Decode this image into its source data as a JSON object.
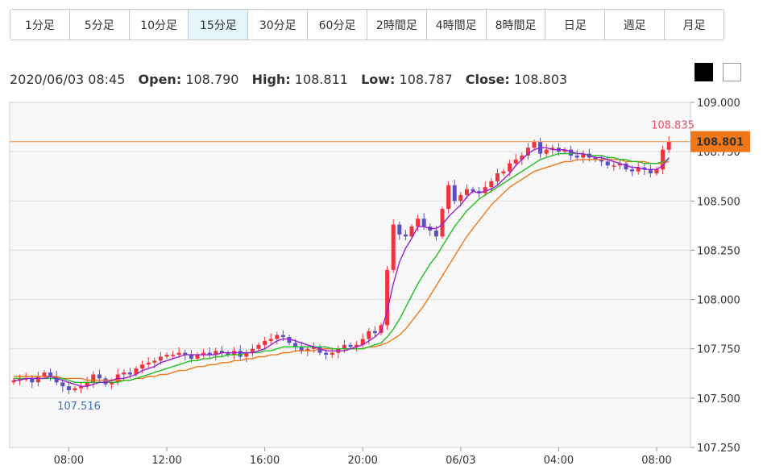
{
  "timeframes": [
    "1分足",
    "5分足",
    "10分足",
    "15分足",
    "30分足",
    "60分足",
    "2時間足",
    "4時間足",
    "8時間足",
    "日足",
    "週足",
    "月足"
  ],
  "active_timeframe": "15分足",
  "ohlc": {
    "datetime": "2020/06/03 08:45",
    "open_label": "Open:",
    "open": "108.790",
    "high_label": "High:",
    "high": "108.811",
    "low_label": "Low:",
    "low": "108.787",
    "close_label": "Close:",
    "close": "108.803"
  },
  "colors": {
    "up": "#f0323c",
    "down": "#5a50c8",
    "ma_short": "#9b1fd6",
    "ma_mid": "#1fbf1f",
    "ma_long": "#f07818",
    "price_line": "#f0a060",
    "price_tag": "#f07818",
    "high_label": "#e8506a",
    "low_label": "#3a70b8",
    "plot_bg": "#f8f8f8",
    "grid": "#dcdcdc"
  },
  "chart_data": {
    "type": "candlestick",
    "ylim": [
      107.25,
      109.0
    ],
    "yticks": [
      "109.000",
      "108.750",
      "108.500",
      "108.250",
      "108.000",
      "107.750",
      "107.500",
      "107.250"
    ],
    "xticks": [
      {
        "label": "08:00",
        "index": 9
      },
      {
        "label": "12:00",
        "index": 25
      },
      {
        "label": "16:00",
        "index": 41
      },
      {
        "label": "20:00",
        "index": 57
      },
      {
        "label": "06/03",
        "index": 73
      },
      {
        "label": "04:00",
        "index": 89
      },
      {
        "label": "08:00",
        "index": 105
      }
    ],
    "current_price": "108.801",
    "high_annotation": "108.835",
    "low_annotation": "107.516",
    "closes": [
      107.59,
      107.6,
      107.6,
      107.58,
      107.61,
      107.63,
      107.61,
      107.58,
      107.56,
      107.54,
      107.55,
      107.56,
      107.58,
      107.62,
      107.6,
      107.57,
      107.58,
      107.62,
      107.63,
      107.62,
      107.65,
      107.67,
      107.68,
      107.69,
      107.71,
      107.72,
      107.72,
      107.73,
      107.72,
      107.7,
      107.72,
      107.73,
      107.72,
      107.74,
      107.73,
      107.72,
      107.74,
      107.71,
      107.73,
      107.75,
      107.77,
      107.79,
      107.8,
      107.82,
      107.81,
      107.78,
      107.76,
      107.74,
      107.75,
      107.76,
      107.73,
      107.72,
      107.73,
      107.75,
      107.77,
      107.76,
      107.77,
      107.8,
      107.84,
      107.83,
      107.87,
      108.15,
      108.38,
      108.33,
      108.32,
      108.37,
      108.41,
      108.37,
      108.35,
      108.32,
      108.46,
      108.58,
      108.5,
      108.53,
      108.56,
      108.55,
      108.54,
      108.57,
      108.6,
      108.64,
      108.65,
      108.69,
      108.71,
      108.73,
      108.77,
      108.8,
      108.74,
      108.76,
      108.77,
      108.75,
      108.76,
      108.73,
      108.72,
      108.74,
      108.72,
      108.71,
      108.7,
      108.68,
      108.68,
      108.69,
      108.66,
      108.65,
      108.67,
      108.66,
      108.64,
      108.66,
      108.76,
      108.8
    ],
    "ma_short": [
      107.59,
      107.59,
      107.6,
      107.6,
      107.6,
      107.6,
      107.61,
      107.6,
      107.59,
      107.58,
      107.57,
      107.56,
      107.56,
      107.57,
      107.58,
      107.58,
      107.59,
      107.6,
      107.6,
      107.61,
      107.62,
      107.64,
      107.65,
      107.66,
      107.68,
      107.69,
      107.7,
      107.71,
      107.72,
      107.72,
      107.72,
      107.72,
      107.72,
      107.72,
      107.73,
      107.73,
      107.73,
      107.73,
      107.73,
      107.73,
      107.74,
      107.75,
      107.77,
      107.79,
      107.8,
      107.8,
      107.79,
      107.78,
      107.77,
      107.76,
      107.75,
      107.74,
      107.74,
      107.74,
      107.74,
      107.75,
      107.76,
      107.77,
      107.79,
      107.81,
      107.84,
      107.94,
      108.08,
      108.19,
      108.26,
      108.31,
      108.37,
      108.37,
      108.36,
      108.36,
      108.38,
      108.42,
      108.45,
      108.48,
      108.52,
      108.55,
      108.54,
      108.55,
      108.56,
      108.58,
      108.61,
      108.64,
      108.68,
      108.71,
      108.74,
      108.76,
      108.77,
      108.77,
      108.76,
      108.76,
      108.76,
      108.75,
      108.74,
      108.74,
      108.73,
      108.72,
      108.72,
      108.71,
      108.7,
      108.69,
      108.68,
      108.67,
      108.67,
      108.66,
      108.66,
      108.66,
      108.68,
      108.72
    ],
    "ma_mid": [
      107.6,
      107.6,
      107.6,
      107.6,
      107.6,
      107.6,
      107.6,
      107.6,
      107.6,
      107.59,
      107.58,
      107.58,
      107.58,
      107.58,
      107.58,
      107.58,
      107.58,
      107.58,
      107.59,
      107.59,
      107.6,
      107.61,
      107.62,
      107.63,
      107.64,
      107.65,
      107.66,
      107.67,
      107.68,
      107.69,
      107.69,
      107.7,
      107.7,
      107.71,
      107.71,
      107.72,
      107.72,
      107.72,
      107.73,
      107.73,
      107.73,
      107.74,
      107.74,
      107.75,
      107.76,
      107.76,
      107.76,
      107.76,
      107.76,
      107.76,
      107.76,
      107.76,
      107.75,
      107.75,
      107.75,
      107.75,
      107.75,
      107.75,
      107.76,
      107.77,
      107.78,
      107.81,
      107.85,
      107.9,
      107.96,
      108.02,
      108.08,
      108.13,
      108.18,
      108.22,
      108.27,
      108.32,
      108.37,
      108.41,
      108.45,
      108.48,
      108.51,
      108.53,
      108.55,
      108.57,
      108.59,
      108.61,
      108.63,
      108.65,
      108.67,
      108.69,
      108.71,
      108.72,
      108.73,
      108.74,
      108.74,
      108.74,
      108.74,
      108.74,
      108.73,
      108.73,
      108.73,
      108.72,
      108.72,
      108.71,
      108.71,
      108.7,
      108.7,
      108.69,
      108.69,
      108.69,
      108.7,
      108.71
    ],
    "ma_long": [
      107.61,
      107.61,
      107.61,
      107.61,
      107.61,
      107.61,
      107.61,
      107.61,
      107.6,
      107.6,
      107.6,
      107.6,
      107.59,
      107.59,
      107.59,
      107.59,
      107.59,
      107.59,
      107.59,
      107.59,
      107.6,
      107.6,
      107.61,
      107.61,
      107.62,
      107.62,
      107.63,
      107.64,
      107.64,
      107.65,
      107.66,
      107.66,
      107.67,
      107.67,
      107.68,
      107.68,
      107.69,
      107.69,
      107.7,
      107.7,
      107.71,
      107.71,
      107.72,
      107.72,
      107.73,
      107.73,
      107.74,
      107.74,
      107.74,
      107.74,
      107.75,
      107.75,
      107.75,
      107.75,
      107.75,
      107.75,
      107.75,
      107.75,
      107.76,
      107.76,
      107.77,
      107.78,
      107.8,
      107.82,
      107.85,
      107.89,
      107.93,
      107.97,
      108.02,
      108.07,
      108.12,
      108.17,
      108.22,
      108.27,
      108.32,
      108.36,
      108.4,
      108.44,
      108.48,
      108.51,
      108.54,
      108.57,
      108.59,
      108.61,
      108.63,
      108.65,
      108.66,
      108.67,
      108.68,
      108.69,
      108.7,
      108.7,
      108.71,
      108.71,
      108.71,
      108.71,
      108.71,
      108.71,
      108.71,
      108.71,
      108.7,
      108.7,
      108.7,
      108.7,
      108.69,
      108.69,
      108.69,
      108.7
    ]
  }
}
